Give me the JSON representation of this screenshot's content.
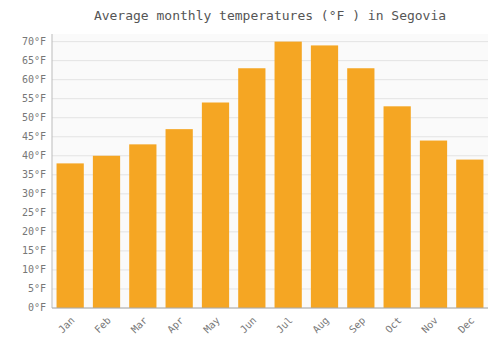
{
  "chart_data": {
    "type": "bar",
    "title": "Average monthly temperatures (°F ) in Segovia",
    "categories": [
      "Jan",
      "Feb",
      "Mar",
      "Apr",
      "May",
      "Jun",
      "Jul",
      "Aug",
      "Sep",
      "Oct",
      "Nov",
      "Dec"
    ],
    "values": [
      38,
      40,
      43,
      47,
      54,
      63,
      70,
      69,
      63,
      53,
      44,
      39
    ],
    "color": "#F5A623",
    "ylim": [
      0,
      72
    ],
    "yticks": [
      {
        "value": 0,
        "label": "0°F"
      },
      {
        "value": 5,
        "label": "5°F"
      },
      {
        "value": 10,
        "label": "10°F"
      },
      {
        "value": 15,
        "label": "15°F"
      },
      {
        "value": 20,
        "label": "20°F"
      },
      {
        "value": 25,
        "label": "25°F"
      },
      {
        "value": 30,
        "label": "30°F"
      },
      {
        "value": 35,
        "label": "35°F"
      },
      {
        "value": 40,
        "label": "40°F"
      },
      {
        "value": 45,
        "label": "45°F"
      },
      {
        "value": 50,
        "label": "50°F"
      },
      {
        "value": 55,
        "label": "55°F"
      },
      {
        "value": 60,
        "label": "60°F"
      },
      {
        "value": 65,
        "label": "65°F"
      },
      {
        "value": 70,
        "label": "70°F"
      }
    ],
    "grid": true
  }
}
